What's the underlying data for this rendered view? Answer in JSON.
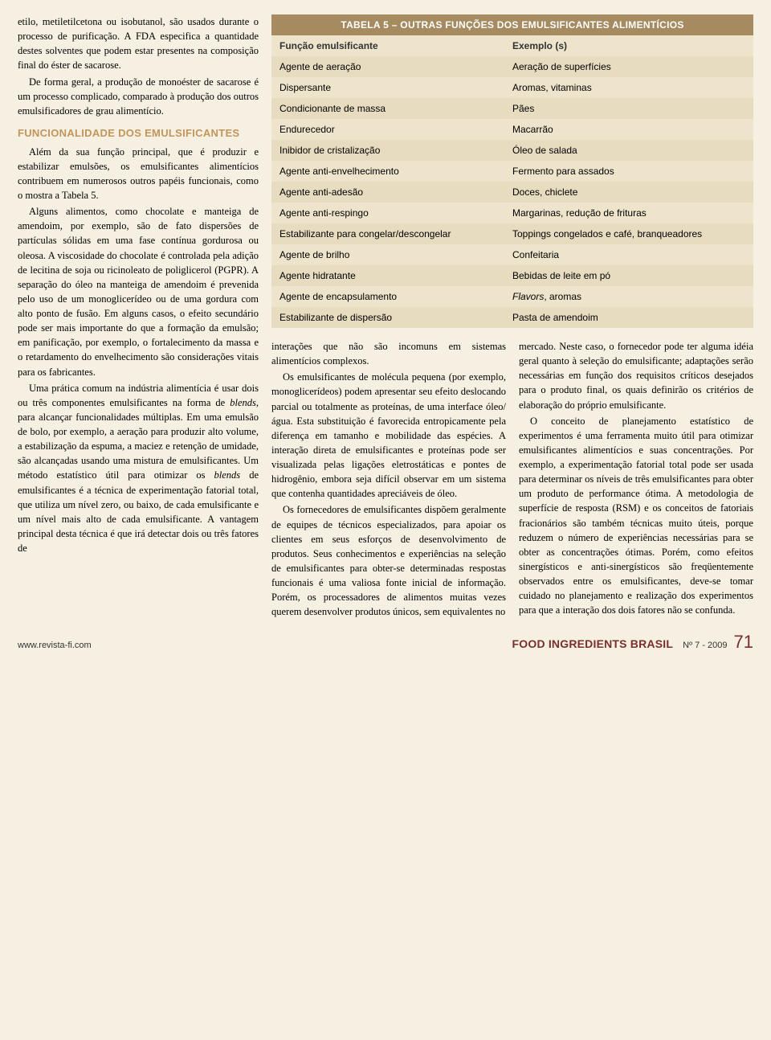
{
  "colors": {
    "page_bg": "#f5f0e1",
    "table_bg": "#ede4cb",
    "table_bg_alt": "#e7dcc0",
    "table_title_bg": "#a58b5f",
    "table_title_fg": "#ffffff",
    "section_head": "#c2955b",
    "brand": "#7a2e2e"
  },
  "left": {
    "p1": "etilo, metiletilcetona ou isobutanol, são usados durante o processo de purificação. A FDA especifica a quantidade destes solventes que podem estar presentes na composição final do éster de sacarose.",
    "p2": "De forma geral, a produção de monoéster de sacarose é um processo complicado, comparado à produção dos outros emulsificadores de grau alimentício.",
    "sec_head": "FUNCIONALIDADE DOS EMULSIFICANTES",
    "p3": "Além da sua função principal, que é produzir e estabilizar emulsões, os emulsificantes alimentícios contribuem em numerosos outros papéis funcionais, como o mostra a Tabela 5.",
    "p4": "Alguns alimentos, como chocolate e manteiga de amendoim, por exemplo, são de fato dispersões de partículas sólidas em uma fase contínua gordurosa ou oleosa. A viscosidade do chocolate é controlada pela adição de lecitina de soja ou ricinoleato de poliglicerol (PGPR). A separação do óleo na manteiga de amendoim é prevenida pelo uso de um monoglicerídeo ou de uma gordura com alto ponto de fusão. Em alguns casos, o efeito secundário pode ser mais importante do que a formação da emulsão; em panificação, por exemplo, o fortalecimento da massa e o retardamento do envelhecimento são considerações vitais para os fabricantes.",
    "p5a": "Uma prática comum na indústria alimentícia é usar dois ou três componentes emulsificantes na forma de ",
    "p5_blends1": "blends",
    "p5b": ", para alcançar funcionalidades múltiplas. Em uma emulsão de bolo, por exemplo, a aeração para produzir alto volume, a estabilização da espuma, a maciez e retenção de umidade, são alcançadas usando uma mistura de emulsificantes. Um método estatístico útil para otimizar os ",
    "p5_blends2": "blends",
    "p5c": " de emulsificantes é a técnica de experimentação fatorial total, que utiliza um nível zero, ou baixo, de cada emulsificante e um nível mais alto de cada emulsificante. A vantagem principal desta técnica é que irá detectar dois ou três fatores de"
  },
  "table5": {
    "title": "TABELA 5 – OUTRAS FUNÇÕES DOS EMULSIFICANTES ALIMENTÍCIOS",
    "head_c1": "Função emulsificante",
    "head_c2": "Exemplo (s)",
    "rows": [
      {
        "c1": "Agente de aeração",
        "c2": "Aeração de superfícies"
      },
      {
        "c1": "Dispersante",
        "c2": "Aromas, vitaminas"
      },
      {
        "c1": "Condicionante de massa",
        "c2": "Pães"
      },
      {
        "c1": "Endurecedor",
        "c2": "Macarrão"
      },
      {
        "c1": "Inibidor de cristalização",
        "c2": "Óleo de salada"
      },
      {
        "c1": "Agente anti-envelhecimento",
        "c2": "Fermento para assados"
      },
      {
        "c1": "Agente anti-adesão",
        "c2": "Doces, chiclete"
      },
      {
        "c1": "Agente anti-respingo",
        "c2": "Margarinas, redução de frituras"
      },
      {
        "c1": "Estabilizante para congelar/descongelar",
        "c2": "Toppings congelados e café, branqueadores"
      },
      {
        "c1": "Agente de brilho",
        "c2": "Confeitaria"
      },
      {
        "c1": "Agente hidratante",
        "c2": "Bebidas de leite em pó"
      },
      {
        "c1": "Agente de encapsulamento",
        "c2_pre": "Flavors",
        "c2_post": ", aromas"
      },
      {
        "c1": "Estabilizante de dispersão",
        "c2": "Pasta de amendoim"
      }
    ]
  },
  "mid": {
    "p1": "interações que não são incomuns em sistemas alimentícios complexos.",
    "p2": "Os emulsificantes de molécula pequena (por exemplo, monoglicerídeos) podem apresentar seu efeito deslocando parcial ou totalmente as proteínas, de uma interface óleo/água. Esta substituição é favorecida entropicamente pela diferença em tamanho e mobilidade das espécies. A interação direta de emulsificantes e proteínas pode ser visualizada pelas ligações eletrostáticas e pontes de hidrogênio, embora seja difícil observar em um sistema que contenha quantidades apreciáveis de óleo.",
    "p3": "Os fornecedores de emulsificantes dispõem geralmente de equipes de técnicos especializados, para apoiar os clientes em seus esforços de desenvolvimento de produtos. Seus conhecimentos e experiências na seleção de emulsificantes para obter-se determinadas respostas funcionais é uma valiosa fonte inicial de informação. Porém, os processadores de alimentos muitas vezes querem desenvolver produtos únicos, sem equivalentes no"
  },
  "right": {
    "p1": "mercado. Neste caso, o fornecedor pode ter alguma idéia geral quanto à seleção do emulsificante; adaptações serão necessárias em função dos requisitos críticos desejados para o produto final, os quais definirão os critérios de elaboração do próprio emulsificante.",
    "p2": "O conceito de planejamento estatístico de experimentos é uma ferramenta muito útil para otimizar emulsificantes alimentícios e suas concentrações. Por exemplo, a experimentação fatorial total pode ser usada para determinar os níveis de três emulsificantes para obter um produto de performance ótima. A metodologia de superfície de resposta (RSM) e os conceitos de fatoriais fracionários são também técnicas muito úteis, porque reduzem o número de experiências necessárias para se obter as concentrações ótimas. Porém, como efeitos sinergísticos e anti-sinergísticos são freqüentemente observados entre os emulsificantes, deve-se tomar cuidado no planejamento e realização dos experimentos para que a interação dos dois fatores não se confunda."
  },
  "footer": {
    "url": "www.revista-fi.com",
    "brand": "FOOD INGREDIENTS BRASIL",
    "issue": "Nº 7 - 2009",
    "page": "71"
  }
}
